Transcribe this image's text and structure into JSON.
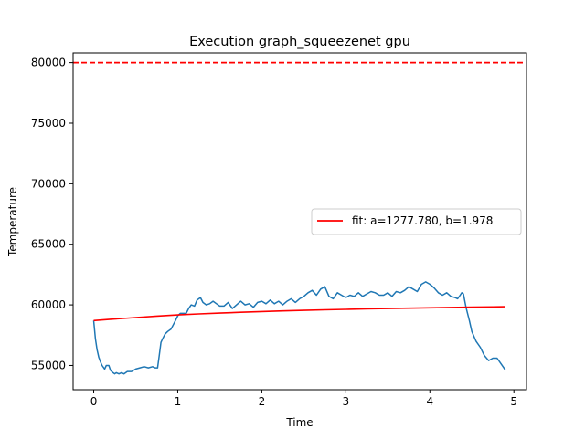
{
  "chart_data": {
    "type": "line",
    "title": "Execution graph_squeezenet gpu",
    "xlabel": "Time",
    "ylabel": "Temperature",
    "xlim": [
      -0.245,
      5.15
    ],
    "ylim": [
      53000,
      80800
    ],
    "xticks": [
      0,
      1,
      2,
      3,
      4,
      5
    ],
    "yticks": [
      55000,
      60000,
      65000,
      70000,
      75000,
      80000
    ],
    "grid": false,
    "legend_position": "center-right",
    "reference_line": {
      "y": 80000,
      "style": "dashed",
      "color": "#ff0000"
    },
    "series": [
      {
        "kind": "measured",
        "color": "#1f77b4",
        "x": [
          0.0,
          0.02,
          0.04,
          0.06,
          0.08,
          0.1,
          0.13,
          0.15,
          0.18,
          0.2,
          0.23,
          0.25,
          0.27,
          0.3,
          0.33,
          0.36,
          0.4,
          0.45,
          0.5,
          0.55,
          0.6,
          0.65,
          0.7,
          0.73,
          0.76,
          0.78,
          0.8,
          0.82,
          0.85,
          0.88,
          0.92,
          0.95,
          0.98,
          1.0,
          1.03,
          1.06,
          1.1,
          1.13,
          1.16,
          1.2,
          1.23,
          1.27,
          1.3,
          1.34,
          1.38,
          1.42,
          1.46,
          1.5,
          1.55,
          1.6,
          1.65,
          1.7,
          1.75,
          1.8,
          1.85,
          1.9,
          1.95,
          2.0,
          2.05,
          2.1,
          2.15,
          2.2,
          2.25,
          2.3,
          2.35,
          2.4,
          2.45,
          2.5,
          2.55,
          2.6,
          2.65,
          2.7,
          2.75,
          2.8,
          2.85,
          2.9,
          2.95,
          3.0,
          3.05,
          3.1,
          3.15,
          3.2,
          3.25,
          3.3,
          3.35,
          3.4,
          3.45,
          3.5,
          3.55,
          3.6,
          3.65,
          3.7,
          3.75,
          3.8,
          3.85,
          3.9,
          3.95,
          4.0,
          4.05,
          4.1,
          4.15,
          4.2,
          4.25,
          4.3,
          4.33,
          4.36,
          4.38,
          4.4,
          4.43,
          4.47,
          4.5,
          4.55,
          4.6,
          4.65,
          4.7,
          4.75,
          4.8,
          4.85,
          4.88,
          4.9
        ],
        "y": [
          58700,
          57200,
          56300,
          55700,
          55300,
          55000,
          54700,
          55000,
          55000,
          54600,
          54400,
          54300,
          54400,
          54300,
          54400,
          54300,
          54500,
          54500,
          54700,
          54800,
          54900,
          54800,
          54900,
          54800,
          54800,
          55800,
          56900,
          57200,
          57600,
          57800,
          58000,
          58400,
          58800,
          59100,
          59300,
          59300,
          59300,
          59700,
          60000,
          59900,
          60400,
          60600,
          60200,
          60000,
          60100,
          60300,
          60100,
          59900,
          59900,
          60200,
          59700,
          60000,
          60300,
          60000,
          60100,
          59800,
          60200,
          60300,
          60100,
          60400,
          60100,
          60300,
          60000,
          60300,
          60500,
          60200,
          60500,
          60700,
          61000,
          61200,
          60800,
          61300,
          61500,
          60700,
          60500,
          61000,
          60800,
          60600,
          60800,
          60700,
          61000,
          60700,
          60900,
          61100,
          61000,
          60800,
          60800,
          61000,
          60700,
          61100,
          61000,
          61200,
          61500,
          61300,
          61100,
          61700,
          61900,
          61700,
          61400,
          61000,
          60800,
          61000,
          60700,
          60600,
          60500,
          60800,
          61000,
          60900,
          59800,
          58700,
          57800,
          57000,
          56500,
          55800,
          55400,
          55600,
          55600,
          55100,
          54800,
          54600
        ]
      },
      {
        "kind": "fit",
        "name": "fit: a=1277.780, b=1.978",
        "color": "#ff0000",
        "x": [
          0.0,
          0.25,
          0.5,
          0.75,
          1.0,
          1.25,
          1.5,
          1.75,
          2.0,
          2.25,
          2.5,
          2.75,
          3.0,
          3.25,
          3.5,
          3.75,
          4.0,
          4.25,
          4.5,
          4.75,
          4.9
        ],
        "y": [
          58700,
          58830,
          58950,
          59070,
          59170,
          59250,
          59320,
          59390,
          59450,
          59500,
          59550,
          59590,
          59630,
          59670,
          59700,
          59730,
          59760,
          59790,
          59810,
          59830,
          59850
        ]
      }
    ]
  }
}
